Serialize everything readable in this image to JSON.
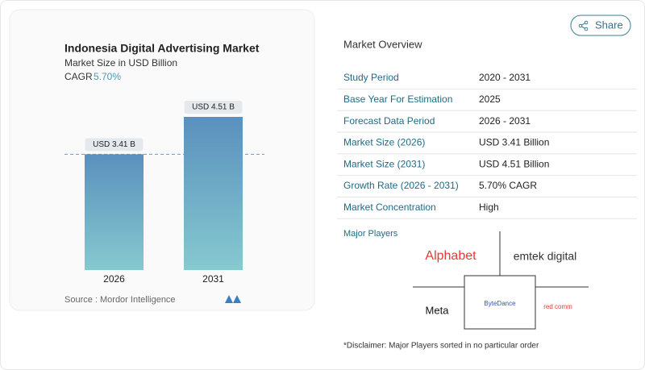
{
  "chart_data": {
    "type": "bar",
    "title": "Indonesia Digital Advertising Market",
    "subtitle": "Market Size in USD Billion",
    "cagr_label": "CAGR",
    "cagr": "5.70%",
    "categories": [
      "2026",
      "2031"
    ],
    "values": [
      3.41,
      4.51
    ],
    "value_labels": [
      "USD 3.41 B",
      "USD 4.51 B"
    ],
    "source_label": "Source :",
    "source": "Mordor Intelligence"
  },
  "share_button": "Share",
  "overview": {
    "title": "Market Overview",
    "rows": [
      [
        "Study Period",
        "2020 - 2031"
      ],
      [
        "Base Year For Estimation",
        "2025"
      ],
      [
        "Forecast Data Period",
        "2026 - 2031"
      ],
      [
        "Market Size (2026)",
        "USD 3.41 Billion"
      ],
      [
        "Market Size (2031)",
        "USD 4.51 Billion"
      ],
      [
        "Growth Rate (2026 - 2031)",
        "5.70% CAGR"
      ],
      [
        "Market Concentration",
        "High"
      ]
    ]
  },
  "major_players": {
    "title": "Major Players",
    "players": [
      "Alphabet",
      "emtek digital",
      "Meta",
      "ByteDance",
      "red comm"
    ]
  },
  "disclaimer": "*Disclaimer: Major Players sorted in no particular order"
}
